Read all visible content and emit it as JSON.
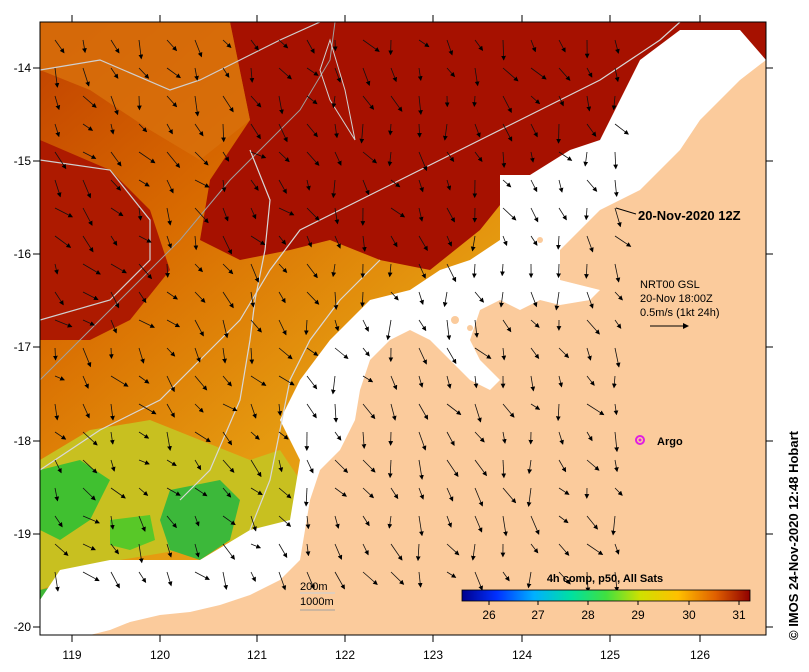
{
  "map": {
    "timestamp_label": "20-Nov-2020 12Z",
    "current_legend": {
      "source": "NRT00 GSL",
      "time": "20-Nov 18:00Z",
      "scale": "0.5m/s (1kt 24h)"
    },
    "argo_label": "Argo",
    "bathymetry_legend": [
      "200m",
      "1000m"
    ],
    "colorbar": {
      "title": "4h comp, p50, All Sats",
      "ticks": [
        "26",
        "27",
        "28",
        "29",
        "30",
        "31"
      ]
    },
    "x_ticks": [
      "119",
      "120",
      "121",
      "122",
      "123",
      "124",
      "125",
      "126"
    ],
    "y_ticks": [
      "-14",
      "-15",
      "-16",
      "-17",
      "-18",
      "-19",
      "-20"
    ],
    "credit": "© IMOS 24-Nov-2020 12:48 Hobart",
    "colors": {
      "land": "#fbcb9c",
      "sst_hot": "#a61100",
      "sst_warm": "#d86000",
      "sst_mid": "#f0a000",
      "sst_cool": "#40c030",
      "argo": "#e020e0"
    }
  }
}
